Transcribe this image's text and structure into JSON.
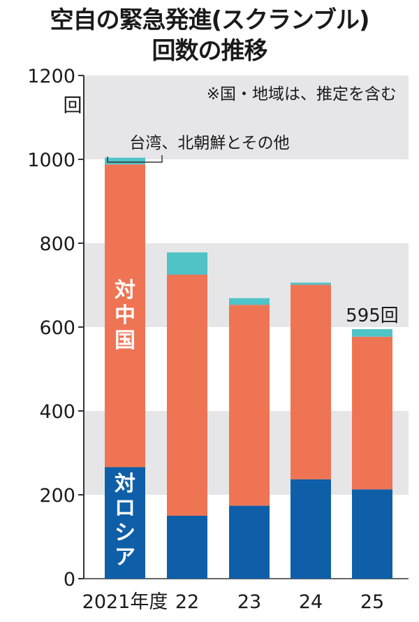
{
  "header": {
    "title_line1": "空自の緊急発進(スクランブル)",
    "title_line2": "回数の推移"
  },
  "colors": {
    "russia": "#0f5fa8",
    "china": "#ef7454",
    "other": "#4fc3c6",
    "band": "#e6e6e8",
    "axis": "#333333"
  },
  "chart_data": {
    "type": "bar",
    "stacked": true,
    "categories": [
      "2021年度",
      "22",
      "23",
      "24",
      "25"
    ],
    "series": [
      {
        "name": "対ロシア",
        "values": [
          266,
          150,
          174,
          237,
          213
        ]
      },
      {
        "name": "対中国",
        "values": [
          722,
          575,
          479,
          464,
          364
        ]
      },
      {
        "name": "台湾、北朝鮮とその他",
        "values": [
          16,
          53,
          16,
          5,
          18
        ]
      }
    ],
    "ylim": [
      0,
      1200
    ],
    "yticks": [
      "0",
      "200",
      "400",
      "600",
      "800",
      "1000",
      "1200"
    ],
    "yunit": "回",
    "annotations": {
      "note": "※国・地域は、推定を含む",
      "other_label": "台湾、北朝鮮とその他",
      "china_label": "対中国",
      "russia_label": "対ロシア",
      "last_total": "595回"
    },
    "grid": "alternating bands"
  }
}
